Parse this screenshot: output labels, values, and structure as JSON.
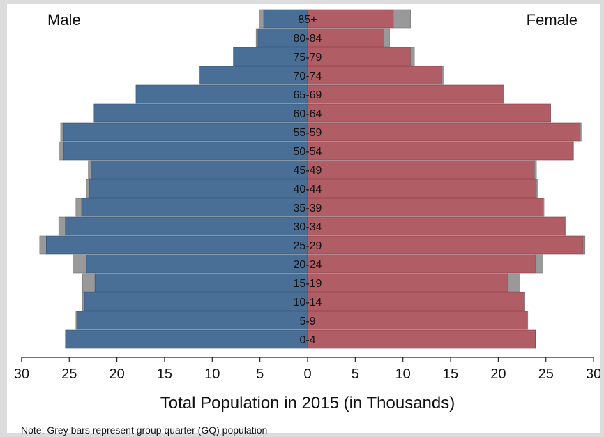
{
  "chart_data": {
    "type": "bar",
    "orientation": "horizontal-pyramid",
    "left_label": "Male",
    "right_label": "Female",
    "xlabel": "Total Population in 2015 (in Thousands)",
    "xlim": [
      -30,
      30
    ],
    "x_ticks": [
      30,
      25,
      20,
      15,
      10,
      5,
      0,
      5,
      10,
      15,
      20,
      25,
      30
    ],
    "categories": [
      "85+",
      "80-84",
      "75-79",
      "70-74",
      "65-69",
      "60-64",
      "55-59",
      "50-54",
      "45-49",
      "40-44",
      "35-39",
      "30-34",
      "25-29",
      "20-24",
      "15-19",
      "10-14",
      "5-9",
      "0-4"
    ],
    "series": [
      {
        "name": "Male",
        "color": "#4a6f97",
        "values": [
          4.6,
          5.2,
          7.7,
          11.3,
          18.0,
          22.4,
          25.6,
          25.6,
          22.7,
          22.9,
          23.7,
          25.4,
          27.4,
          23.2,
          22.3,
          23.4,
          24.2,
          25.4
        ]
      },
      {
        "name": "Male GQ",
        "color": "#999999",
        "values": [
          0.5,
          0.2,
          0.1,
          0.0,
          0.0,
          0.0,
          0.3,
          0.4,
          0.3,
          0.3,
          0.6,
          0.7,
          0.7,
          1.4,
          1.3,
          0.2,
          0.1,
          0.0
        ]
      },
      {
        "name": "Female",
        "color": "#b15d66",
        "values": [
          9.0,
          8.0,
          10.8,
          14.1,
          20.6,
          25.5,
          28.6,
          27.8,
          23.8,
          24.0,
          24.7,
          27.0,
          28.9,
          23.9,
          21.0,
          22.7,
          23.0,
          23.9
        ]
      },
      {
        "name": "Female GQ",
        "color": "#999999",
        "values": [
          1.8,
          0.6,
          0.4,
          0.2,
          0.0,
          0.0,
          0.1,
          0.1,
          0.2,
          0.1,
          0.1,
          0.1,
          0.2,
          0.8,
          1.2,
          0.1,
          0.1,
          0.0
        ]
      }
    ],
    "grid": false
  },
  "note": "Note:  Grey bars represent group quarter (GQ) population"
}
